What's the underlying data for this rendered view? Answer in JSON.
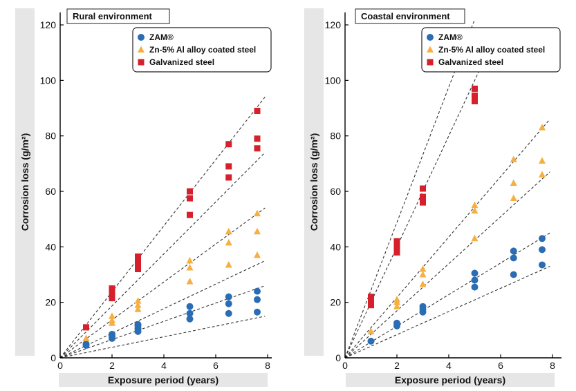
{
  "chart_data": [
    {
      "type": "scatter",
      "title": "Rural environment",
      "xlabel": "Exposure period (years)",
      "ylabel": "Corrosion loss (g/m²)",
      "xlim": [
        0,
        8.5
      ],
      "ylim": [
        0,
        122
      ],
      "xticks": [
        0,
        2,
        4,
        6,
        8
      ],
      "yticks": [
        0,
        20,
        40,
        60,
        80,
        100,
        120
      ],
      "legend_position": "top-right",
      "series": [
        {
          "name": "ZAM®",
          "marker": "circle",
          "color": "#2a6db5",
          "points": [
            [
              1,
              4.5
            ],
            [
              1,
              5
            ],
            [
              2,
              7
            ],
            [
              2,
              7.8
            ],
            [
              2,
              8.5
            ],
            [
              3,
              9.5
            ],
            [
              3,
              10.5
            ],
            [
              3,
              11.5
            ],
            [
              3,
              12
            ],
            [
              5,
              14
            ],
            [
              5,
              16
            ],
            [
              5,
              18.5
            ],
            [
              6.5,
              16
            ],
            [
              6.5,
              19.5
            ],
            [
              6.5,
              22
            ],
            [
              7.6,
              16.5
            ],
            [
              7.6,
              21
            ],
            [
              7.6,
              24
            ]
          ],
          "trendlines": [
            [
              [
                0,
                0
              ],
              [
                7.9,
                15
              ]
            ],
            [
              [
                0,
                0
              ],
              [
                7.9,
                26
              ]
            ]
          ]
        },
        {
          "name": "Zn-5% Al alloy coated steel",
          "marker": "triangle",
          "color": "#f5b041",
          "points": [
            [
              1,
              7
            ],
            [
              2,
              12.5
            ],
            [
              2,
              13.5
            ],
            [
              2,
              15
            ],
            [
              3,
              17.5
            ],
            [
              3,
              19
            ],
            [
              3,
              20.5
            ],
            [
              5,
              27.5
            ],
            [
              5,
              32.5
            ],
            [
              5,
              35
            ],
            [
              6.5,
              33.5
            ],
            [
              6.5,
              41.5
            ],
            [
              6.5,
              45.5
            ],
            [
              7.6,
              37
            ],
            [
              7.6,
              45.5
            ],
            [
              7.6,
              52
            ]
          ],
          "trendlines": [
            [
              [
                0,
                0
              ],
              [
                7.9,
                35
              ]
            ],
            [
              [
                0,
                0
              ],
              [
                7.9,
                54
              ]
            ]
          ]
        },
        {
          "name": "Galvanized steel",
          "marker": "square",
          "color": "#d6202b",
          "points": [
            [
              1,
              11
            ],
            [
              2,
              21.5
            ],
            [
              2,
              23
            ],
            [
              2,
              24
            ],
            [
              2,
              25
            ],
            [
              3,
              32
            ],
            [
              3,
              33.5
            ],
            [
              3,
              35
            ],
            [
              3,
              36.5
            ],
            [
              5,
              51.5
            ],
            [
              5,
              57.5
            ],
            [
              5,
              60
            ],
            [
              6.5,
              65
            ],
            [
              6.5,
              69
            ],
            [
              6.5,
              77
            ],
            [
              7.6,
              75.5
            ],
            [
              7.6,
              79
            ],
            [
              7.6,
              89
            ]
          ],
          "trendlines": [
            [
              [
                0,
                0
              ],
              [
                7.9,
                74
              ]
            ],
            [
              [
                0,
                0
              ],
              [
                7.9,
                94
              ]
            ]
          ]
        }
      ]
    },
    {
      "type": "scatter",
      "title": "Coastal environment",
      "xlabel": "Exposure period (years)",
      "ylabel": "Corrosion loss (g/m²)",
      "xlim": [
        0,
        8.5
      ],
      "ylim": [
        0,
        122
      ],
      "xticks": [
        0,
        2,
        4,
        6,
        8
      ],
      "yticks": [
        0,
        20,
        40,
        60,
        80,
        100,
        120
      ],
      "legend_position": "top-right",
      "series": [
        {
          "name": "ZAM®",
          "marker": "circle",
          "color": "#2a6db5",
          "points": [
            [
              1,
              6
            ],
            [
              2,
              11.5
            ],
            [
              2,
              12.5
            ],
            [
              3,
              16.5
            ],
            [
              3,
              17.5
            ],
            [
              3,
              18.5
            ],
            [
              5,
              25.5
            ],
            [
              5,
              28
            ],
            [
              5,
              30.5
            ],
            [
              6.5,
              30
            ],
            [
              6.5,
              36
            ],
            [
              6.5,
              38.5
            ],
            [
              7.6,
              33.5
            ],
            [
              7.6,
              39
            ],
            [
              7.6,
              43
            ]
          ],
          "trendlines": [
            [
              [
                0,
                0
              ],
              [
                7.9,
                33
              ]
            ],
            [
              [
                0,
                0
              ],
              [
                7.9,
                45
              ]
            ]
          ]
        },
        {
          "name": "Zn-5% Al alloy coated steel",
          "marker": "triangle",
          "color": "#f5b041",
          "points": [
            [
              1,
              9.5
            ],
            [
              2,
              18.5
            ],
            [
              2,
              20
            ],
            [
              2,
              21
            ],
            [
              3,
              26.5
            ],
            [
              3,
              30
            ],
            [
              3,
              32
            ],
            [
              5,
              43
            ],
            [
              5,
              53
            ],
            [
              5,
              55
            ],
            [
              6.5,
              57.5
            ],
            [
              6.5,
              63
            ],
            [
              6.5,
              71.5
            ],
            [
              7.6,
              66
            ],
            [
              7.6,
              71
            ],
            [
              7.6,
              83
            ]
          ],
          "trendlines": [
            [
              [
                0,
                0
              ],
              [
                7.9,
                67
              ]
            ],
            [
              [
                0,
                0
              ],
              [
                7.9,
                86
              ]
            ]
          ]
        },
        {
          "name": "Galvanized steel",
          "marker": "square",
          "color": "#d6202b",
          "points": [
            [
              1,
              19
            ],
            [
              1,
              20.5
            ],
            [
              1,
              22
            ],
            [
              2,
              38
            ],
            [
              2,
              40
            ],
            [
              2,
              42
            ],
            [
              3,
              56
            ],
            [
              3,
              58
            ],
            [
              3,
              61
            ],
            [
              5,
              92.5
            ],
            [
              5,
              94.5
            ],
            [
              5,
              97
            ]
          ],
          "trendlines": [
            [
              [
                0,
                0
              ],
              [
                5.5,
                110
              ]
            ],
            [
              [
                0,
                0
              ],
              [
                5.0,
                122
              ]
            ]
          ]
        }
      ]
    }
  ]
}
